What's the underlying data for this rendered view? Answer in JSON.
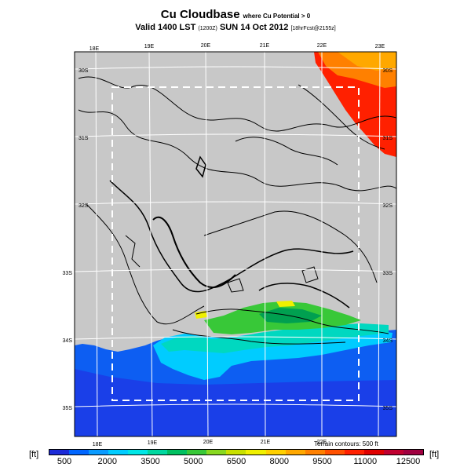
{
  "header": {
    "title": "Cu Cloudbase",
    "subtitle_note": "where Cu Potential > 0",
    "valid_line": "Valid 1400 LST",
    "utc": "(1200Z)",
    "date": "SUN 14 Oct 2012",
    "run": "[18hrFcst@2155z]"
  },
  "map": {
    "lon_labels_top": [
      "18E",
      "19E",
      "20E",
      "21E",
      "22E",
      "23E"
    ],
    "lon_labels_bottom": [
      "18E",
      "19E",
      "20E",
      "21E",
      "22E"
    ],
    "lat_labels_left": [
      "30S",
      "31S",
      "32S",
      "33S",
      "34S",
      "35S"
    ],
    "lat_labels_right": [
      "30S",
      "31S",
      "32S",
      "33S",
      "34S",
      "35S"
    ],
    "colors": {
      "land": "#c8c8c8",
      "sea": "#0d5ef2",
      "deep_sea": "#1040e0",
      "grid": "#ffffff",
      "inner_box": "#ffffff"
    }
  },
  "footer": {
    "contour_note": "Terrain contours: 500 ft",
    "unit_left": "[ft]",
    "unit_right": "[ft]"
  },
  "colorbar": {
    "colors": [
      "#1c2bd8",
      "#0066ff",
      "#0a9bff",
      "#00ccff",
      "#00e6e6",
      "#00d8a0",
      "#00c060",
      "#38c838",
      "#88d820",
      "#c8e000",
      "#f0f000",
      "#ffd000",
      "#ffa800",
      "#ff8000",
      "#ff5000",
      "#ff2000",
      "#e00000",
      "#c00030",
      "#a00040"
    ],
    "labels": [
      "500",
      "2000",
      "3500",
      "5000",
      "6500",
      "8000",
      "9500",
      "11000",
      "12500"
    ]
  }
}
